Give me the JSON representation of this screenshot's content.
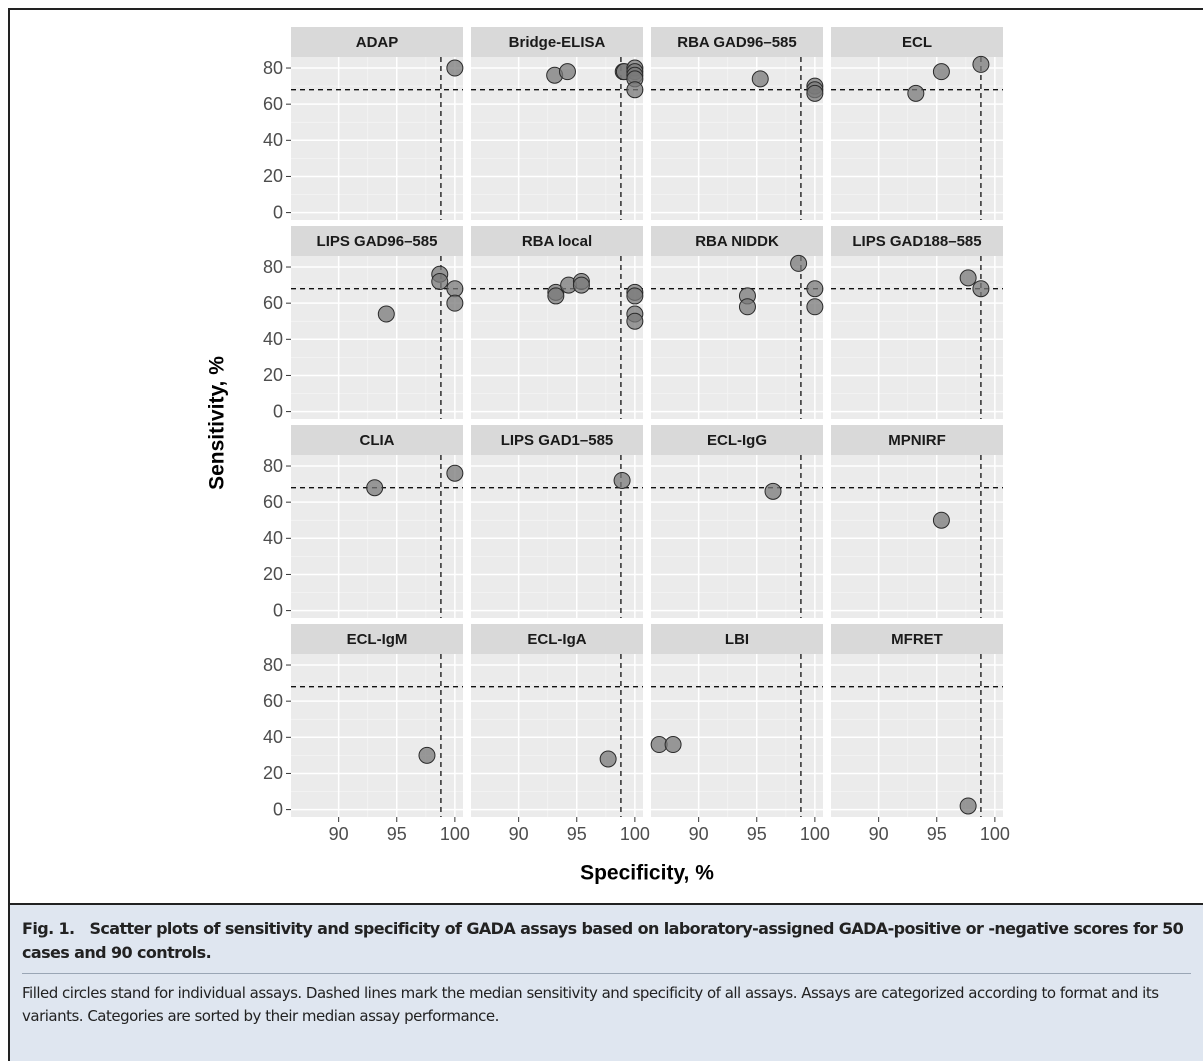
{
  "chart_data": {
    "type": "scatter",
    "xlabel": "Specificity, %",
    "ylabel": "Sensitivity, %",
    "xlim": [
      85.9,
      100.7
    ],
    "ylim": [
      -4.1,
      86.1
    ],
    "xticks": [
      90,
      95,
      100
    ],
    "yticks": [
      0,
      20,
      40,
      60,
      80
    ],
    "hline": 68,
    "vline": 98.8,
    "point_color": "#7a7a7a",
    "grid": true,
    "facets": [
      {
        "name": "ADAP",
        "x": [
          100
        ],
        "y": [
          80
        ]
      },
      {
        "name": "Bridge-ELISA",
        "x": [
          93.1,
          94.2,
          99,
          99.1,
          100,
          100,
          100,
          100,
          100
        ],
        "y": [
          76,
          78,
          78,
          78,
          80,
          78,
          76,
          74,
          68
        ]
      },
      {
        "name": "RBA GAD96–585",
        "x": [
          95.3,
          100,
          100,
          100
        ],
        "y": [
          74,
          70,
          68,
          66
        ]
      },
      {
        "name": "ECL",
        "x": [
          93.2,
          95.4,
          98.8
        ],
        "y": [
          66,
          78,
          82
        ]
      },
      {
        "name": "LIPS GAD96–585",
        "x": [
          98.7,
          98.7,
          100,
          100,
          94.1
        ],
        "y": [
          76,
          72,
          68,
          60,
          54
        ]
      },
      {
        "name": "RBA local",
        "x": [
          93.2,
          93.2,
          94.3,
          95.4,
          95.4,
          100,
          100,
          100,
          100
        ],
        "y": [
          66,
          64,
          70,
          72,
          70,
          66,
          64,
          54,
          50
        ]
      },
      {
        "name": "RBA NIDDK",
        "x": [
          94.2,
          94.2,
          98.6,
          100,
          100
        ],
        "y": [
          64,
          58,
          82,
          68,
          58
        ]
      },
      {
        "name": "LIPS GAD188–585",
        "x": [
          97.7,
          98.8
        ],
        "y": [
          74,
          68
        ]
      },
      {
        "name": "CLIA",
        "x": [
          93.1,
          100
        ],
        "y": [
          68,
          76
        ]
      },
      {
        "name": "LIPS GAD1–585",
        "x": [
          98.9
        ],
        "y": [
          72
        ]
      },
      {
        "name": "ECL-IgG",
        "x": [
          96.4
        ],
        "y": [
          66
        ]
      },
      {
        "name": "MPNIRF",
        "x": [
          95.4
        ],
        "y": [
          50
        ]
      },
      {
        "name": "ECL-IgM",
        "x": [
          97.6
        ],
        "y": [
          30
        ]
      },
      {
        "name": "ECL-IgA",
        "x": [
          97.7
        ],
        "y": [
          28
        ]
      },
      {
        "name": "LBI",
        "x": [
          86.6,
          87.8
        ],
        "y": [
          36,
          36
        ]
      },
      {
        "name": "MFRET",
        "x": [
          97.7
        ],
        "y": [
          2
        ]
      }
    ]
  },
  "caption": {
    "label": "Fig. 1.",
    "title": "Scatter plots of sensitivity and specificity of GADA assays based on laboratory-assigned GADA-positive or -negative scores for 50 cases and 90 controls.",
    "text": "Filled circles stand for individual assays. Dashed lines mark the median sensitivity and specificity of all assays. Assays are categorized according to format and its variants. Categories are sorted by their median assay performance."
  }
}
